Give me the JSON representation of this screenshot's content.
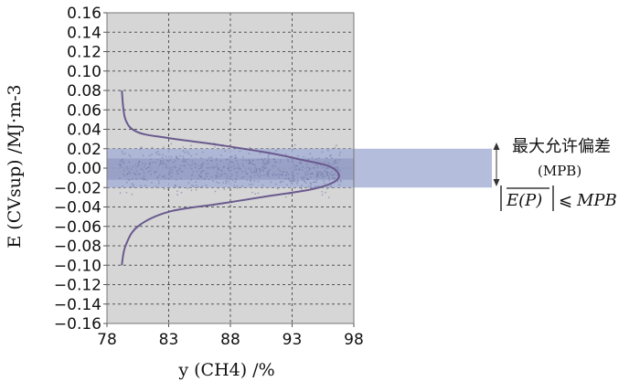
{
  "chart_data": {
    "type": "scatter",
    "xlabel": "y (CH4) /%",
    "ylabel": "E (CVsup) /MJ·m-3",
    "xlim": [
      78,
      98
    ],
    "ylim": [
      -0.16,
      0.16
    ],
    "x_ticks": [
      78,
      83,
      88,
      93,
      98
    ],
    "y_ticks": [
      -0.16,
      -0.14,
      -0.12,
      -0.1,
      -0.08,
      -0.06,
      -0.04,
      -0.02,
      0.0,
      0.02,
      0.04,
      0.06,
      0.08,
      0.1,
      0.12,
      0.14,
      0.16
    ],
    "x_tick_labels": [
      "78",
      "83",
      "88",
      "93",
      "98"
    ],
    "y_tick_labels": [
      "−0.16",
      "−0.14",
      "−0.12",
      "−0.10",
      "−0.08",
      "−0.06",
      "−0.04",
      "−0.02",
      "0.00",
      "0.02",
      "0.04",
      "0.06",
      "0.08",
      "0.10",
      "0.12",
      "0.14",
      "0.16"
    ],
    "grid": true,
    "tolerance_band": {
      "ymin": -0.02,
      "ymax": 0.02
    },
    "scatter_cluster": {
      "x_range": [
        79,
        97
      ],
      "y_center": 0.0,
      "y_spread": 0.02,
      "note_color": "#6f7aa6"
    },
    "distribution_curve": {
      "x": [
        79.2,
        79.5,
        80.5,
        83.0,
        87.0,
        91.0,
        94.0,
        96.0,
        96.8,
        96.3,
        94.5,
        91.0,
        87.0,
        83.0,
        80.5,
        79.5,
        79.2
      ],
      "y": [
        0.08,
        0.05,
        0.037,
        0.031,
        0.024,
        0.016,
        0.008,
        0.002,
        -0.007,
        -0.015,
        -0.022,
        -0.029,
        -0.037,
        -0.045,
        -0.06,
        -0.08,
        -0.1
      ]
    },
    "annotation": {
      "label": "最大允许偏差",
      "sublabel": "(MPB)",
      "formula_lhs": "E(P)",
      "formula_op": "⩽",
      "formula_rhs": "MPB"
    },
    "colors": {
      "plot_bg": "#d6d6d6",
      "band": "#a8b1d6",
      "band_inner": "#7e88b6",
      "curve": "#6a5a8e",
      "grid": "#555555",
      "arrow": "#333333"
    }
  }
}
